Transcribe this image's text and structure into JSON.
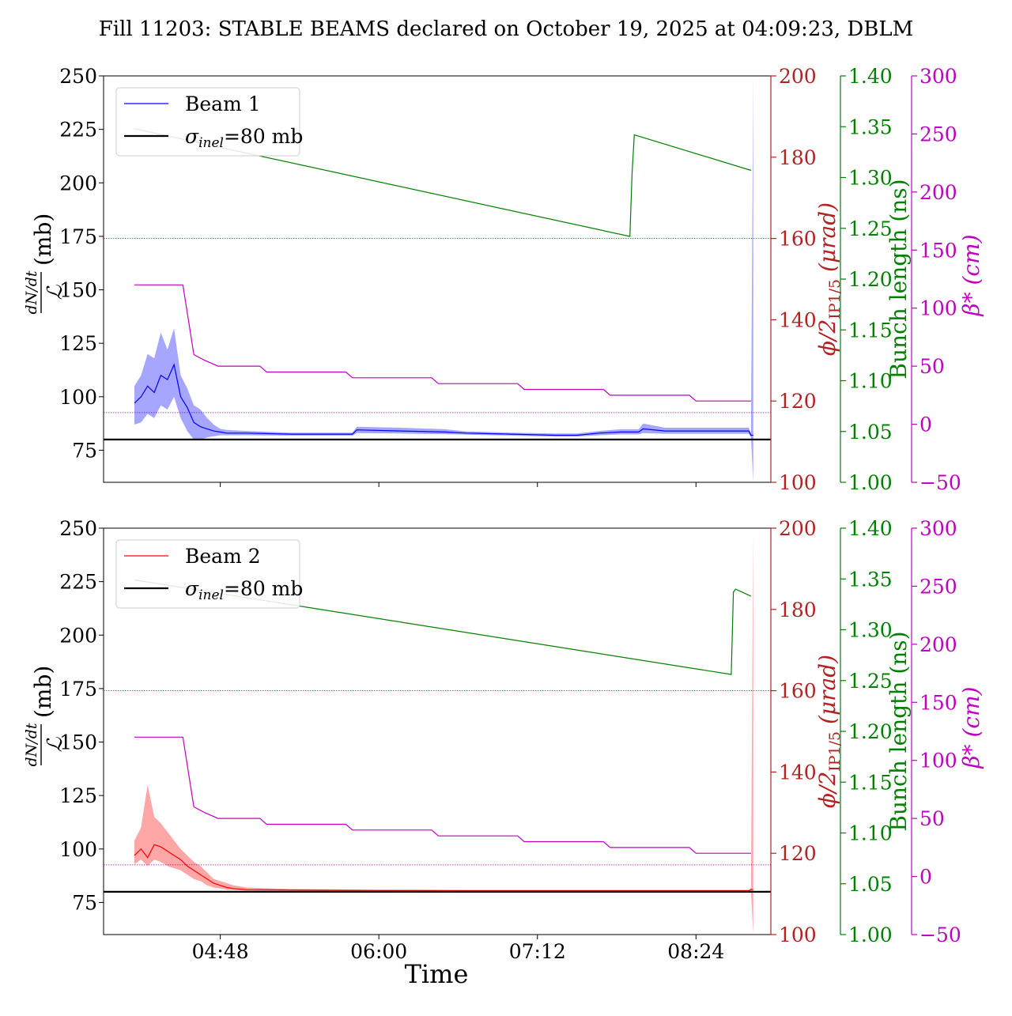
{
  "chart_data": {
    "type": "line",
    "title": "Fill 11203: STABLE BEAMS declared on October 19, 2025 at 04:09:23, DBLM",
    "xlabel": "Time",
    "x_tick_labels": [
      "04:48",
      "06:00",
      "07:12",
      "08:24"
    ],
    "x_tick_minutes": [
      288,
      360,
      432,
      504
    ],
    "xlim_minutes": [
      235,
      538
    ],
    "left_axis": {
      "label_fraction_num": "dN/dt",
      "label_fraction_den": "ℒ",
      "label_unit": "(mb)",
      "ylim": [
        60,
        250
      ],
      "ticks": [
        75,
        100,
        125,
        150,
        175,
        200,
        225,
        250
      ]
    },
    "right_axes": [
      {
        "id": "crossing",
        "label_main": "ϕ/2",
        "label_sub": "IP1/5",
        "label_unit": "(μrad)",
        "color": "#b22222",
        "ylim": [
          100,
          200
        ],
        "ticks": [
          100,
          120,
          140,
          160,
          180,
          200
        ]
      },
      {
        "id": "bunch",
        "label": "Bunch length (ns)",
        "color": "#008000",
        "ylim": [
          1.0,
          1.4
        ],
        "ticks": [
          "1.00",
          "1.05",
          "1.10",
          "1.15",
          "1.20",
          "1.25",
          "1.30",
          "1.35",
          "1.40"
        ]
      },
      {
        "id": "beta",
        "label": "β* (cm)",
        "color": "#c000c0",
        "ylim": [
          -50,
          300
        ],
        "ticks": [
          "−50",
          "0",
          "50",
          "100",
          "150",
          "200",
          "250",
          "300"
        ]
      }
    ],
    "panels": [
      {
        "legend": {
          "placement": "top-left",
          "entries": [
            {
              "label": "Beam 1",
              "color": "#0000ff"
            },
            {
              "label": "σinel=80 mb",
              "color": "#000000"
            }
          ]
        },
        "sigma_inel_line": 80,
        "crossing_ref_line": 160,
        "beta_ref_line": 10,
        "series": [
          {
            "name": "Beam 1",
            "axis": "left",
            "color": "#0000ff",
            "x": [
              249,
              252,
              255,
              258,
              261,
              264,
              267,
              270,
              273,
              276,
              279,
              282,
              285,
              288,
              291,
              300,
              320,
              340,
              348,
              350,
              370,
              390,
              400,
              420,
              440,
              450,
              460,
              470,
              478,
              480,
              490,
              500,
              510,
              520,
              528,
              529,
              530
            ],
            "y": [
              97,
              100,
              105,
              102,
              110,
              108,
              115,
              100,
              95,
              88,
              86,
              85,
              84,
              83.5,
              83,
              83,
              82.5,
              82.5,
              82.5,
              84.5,
              84,
              83.5,
              83,
              82.5,
              82,
              82,
              83,
              83.5,
              83.5,
              85,
              84,
              84,
              84,
              84,
              84,
              82,
              82
            ],
            "band_low": [
              87,
              88,
              92,
              90,
              96,
              94,
              100,
              90,
              84,
              80,
              80,
              81,
              81.5,
              82,
              82,
              82,
              81.8,
              81.8,
              81.8,
              83,
              82.8,
              82.5,
              82.3,
              81.8,
              81.4,
              81.4,
              82,
              82.4,
              82.4,
              83,
              82.7,
              82.7,
              82.7,
              82.7,
              82.7,
              81,
              60
            ],
            "band_high": [
              105,
              110,
              120,
              118,
              130,
              122,
              132,
              110,
              104,
              96,
              94,
              90,
              87,
              85,
              84.5,
              84,
              83.2,
              83.2,
              83.2,
              86,
              85.5,
              84.8,
              83.8,
              83.2,
              82.8,
              82.8,
              84,
              84.8,
              84.8,
              87.5,
              85.5,
              85.5,
              85.5,
              85.5,
              85.5,
              83,
              250
            ]
          },
          {
            "name": "Bunch length",
            "axis": "bunch",
            "color": "#008000",
            "x": [
              249,
              474,
              475,
              476,
              529
            ],
            "y": [
              1.348,
              1.242,
              1.305,
              1.342,
              1.307
            ]
          },
          {
            "name": "β*",
            "axis": "beta",
            "color": "#c000c0",
            "x": [
              249,
              271,
              276,
              281,
              287,
              306,
              309,
              345,
              348,
              384,
              387,
              423,
              426,
              462,
              465,
              501,
              504,
              529
            ],
            "y": [
              120,
              120,
              60,
              55,
              50,
              50,
              45,
              45,
              40,
              40,
              35,
              35,
              30,
              30,
              25,
              25,
              20,
              20
            ]
          }
        ]
      },
      {
        "legend": {
          "placement": "top-left",
          "entries": [
            {
              "label": "Beam 2",
              "color": "#ff0000"
            },
            {
              "label": "σinel=80 mb",
              "color": "#000000"
            }
          ]
        },
        "sigma_inel_line": 80,
        "crossing_ref_line": 160,
        "beta_ref_line": 10,
        "series": [
          {
            "name": "Beam 2",
            "axis": "left",
            "color": "#ff0000",
            "x": [
              249,
              252,
              255,
              258,
              261,
              264,
              267,
              270,
              273,
              276,
              279,
              282,
              285,
              288,
              291,
              294,
              300,
              320,
              360,
              400,
              440,
              480,
              520,
              528,
              529,
              530
            ],
            "y": [
              97,
              100,
              96,
              102,
              101,
              99,
              97,
              95,
              92,
              90,
              88,
              86,
              84,
              83,
              82,
              81.5,
              81,
              80.8,
              80.6,
              80.5,
              80.5,
              80.5,
              80.5,
              80.5,
              81,
              81
            ],
            "band_low": [
              93,
              95,
              92,
              95,
              94,
              92,
              91,
              90,
              88,
              86,
              85,
              83,
              82,
              81.5,
              81,
              80.8,
              80.5,
              80.4,
              80.2,
              80.2,
              80.2,
              80.2,
              80.2,
              80.2,
              80,
              60
            ],
            "band_high": [
              104,
              110,
              130,
              115,
              112,
              108,
              104,
              100,
              97,
              94,
              92,
              89,
              86,
              85,
              84,
              83,
              82,
              81.3,
              81,
              80.9,
              80.9,
              80.9,
              80.9,
              80.9,
              82,
              250
            ]
          },
          {
            "name": "Bunch length",
            "axis": "bunch",
            "color": "#008000",
            "x": [
              249,
              520,
              521,
              522,
              529
            ],
            "y": [
              1.349,
              1.256,
              1.337,
              1.34,
              1.333
            ]
          },
          {
            "name": "β*",
            "axis": "beta",
            "color": "#c000c0",
            "x": [
              249,
              271,
              276,
              281,
              287,
              306,
              309,
              345,
              348,
              384,
              387,
              423,
              426,
              462,
              465,
              501,
              504,
              529
            ],
            "y": [
              120,
              120,
              60,
              55,
              50,
              50,
              45,
              45,
              40,
              40,
              35,
              35,
              30,
              30,
              25,
              25,
              20,
              20
            ]
          }
        ]
      }
    ]
  }
}
